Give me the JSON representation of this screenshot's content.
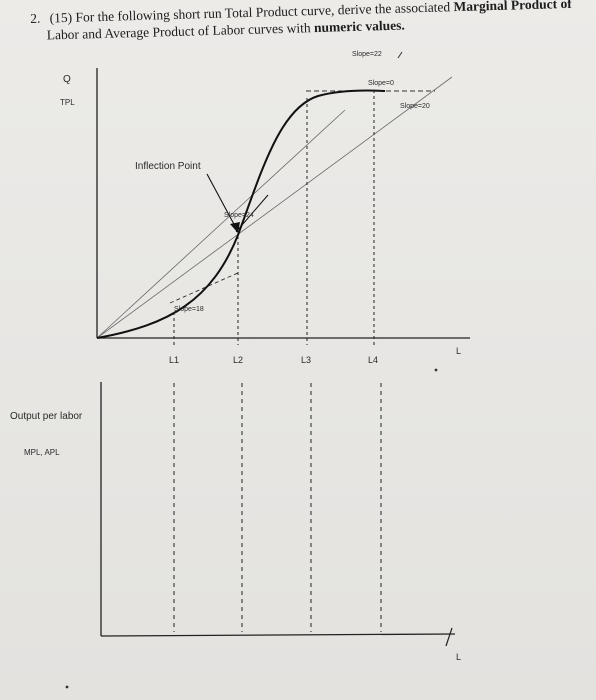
{
  "question": {
    "number": "2.",
    "points": "(15)",
    "text_part1": "For the following short run Total Product curve, derive the associated",
    "text_bold1": "Marginal Product of",
    "text_line2_part1": "Labor and Average Product of Labor curves with",
    "text_bold2": "numeric values."
  },
  "top_graph": {
    "y_label_q": "Q",
    "y_label_tp": "TPL",
    "x_label": "L",
    "ticks": [
      "L1",
      "L2",
      "L3",
      "L4"
    ],
    "inflection_label": "Inflection Point",
    "slope_labels": {
      "top": "Slope=22",
      "flat": "Slope=0",
      "ray": "Slope=20",
      "inflection": "Slope=24",
      "lower": "Slope=18"
    }
  },
  "bottom_graph": {
    "y_label": "Output per labor",
    "y_sublabel": "MPL, APL",
    "x_label": "L"
  }
}
